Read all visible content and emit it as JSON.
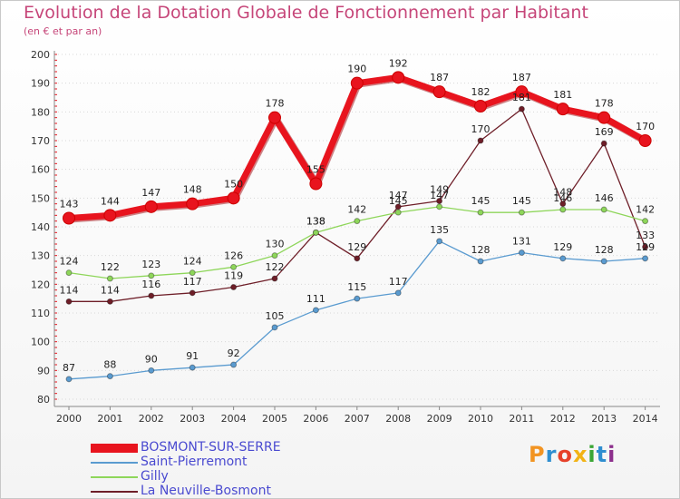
{
  "header": {
    "title": "Evolution de la Dotation Globale de Fonctionnement par Habitant",
    "subtitle": "(en € et par an)"
  },
  "chart_data": {
    "type": "line",
    "title": "Evolution de la Dotation Globale de Fonctionnement par Habitant",
    "subtitle": "(en € et par an)",
    "xlabel": "",
    "ylabel": "",
    "ylim": [
      80,
      200
    ],
    "yticks": [
      80,
      90,
      100,
      110,
      120,
      130,
      140,
      150,
      160,
      170,
      180,
      190,
      200
    ],
    "categories": [
      "2000",
      "2001",
      "2002",
      "2003",
      "2004",
      "2005",
      "2006",
      "2007",
      "2008",
      "2009",
      "2010",
      "2011",
      "2012",
      "2013",
      "2014"
    ],
    "grid": true,
    "legend_position": "bottom-left",
    "series": [
      {
        "name": "La Neuville-Bosmont",
        "color": "#6e1e28",
        "values": [
          114,
          114,
          116,
          117,
          119,
          122,
          138,
          129,
          147,
          149,
          170,
          181,
          148,
          169,
          133
        ]
      },
      {
        "name": "Gilly",
        "color": "#8ed65a",
        "values": [
          124,
          122,
          123,
          124,
          126,
          130,
          138,
          142,
          145,
          147,
          145,
          145,
          146,
          146,
          142
        ]
      },
      {
        "name": "Saint-Pierremont",
        "color": "#5a9bd0",
        "values": [
          87,
          88,
          90,
          91,
          92,
          105,
          111,
          115,
          117,
          135,
          128,
          131,
          129,
          128,
          129
        ]
      },
      {
        "name": "BOSMONT-SUR-SERRE",
        "color": "#e8141e",
        "values": [
          143,
          144,
          147,
          148,
          150,
          178,
          155,
          190,
          192,
          187,
          182,
          187,
          181,
          178,
          170
        ]
      }
    ]
  },
  "legend": {
    "items": [
      {
        "label": "BOSMONT-SUR-SERRE",
        "color": "#e8141e"
      },
      {
        "label": "Saint-Pierremont",
        "color": "#5a9bd0"
      },
      {
        "label": "Gilly",
        "color": "#8ed65a"
      },
      {
        "label": "La Neuville-Bosmont",
        "color": "#6e1e28"
      }
    ]
  },
  "logo": {
    "text": "Proxiti",
    "letters": [
      "P",
      "r",
      "o",
      "x",
      "i",
      "t",
      "i"
    ],
    "colors": [
      "#f29422",
      "#2f8ed0",
      "#e6412a",
      "#f2b316",
      "#3aa635",
      "#2f8ed0",
      "#8c2f8c"
    ]
  }
}
